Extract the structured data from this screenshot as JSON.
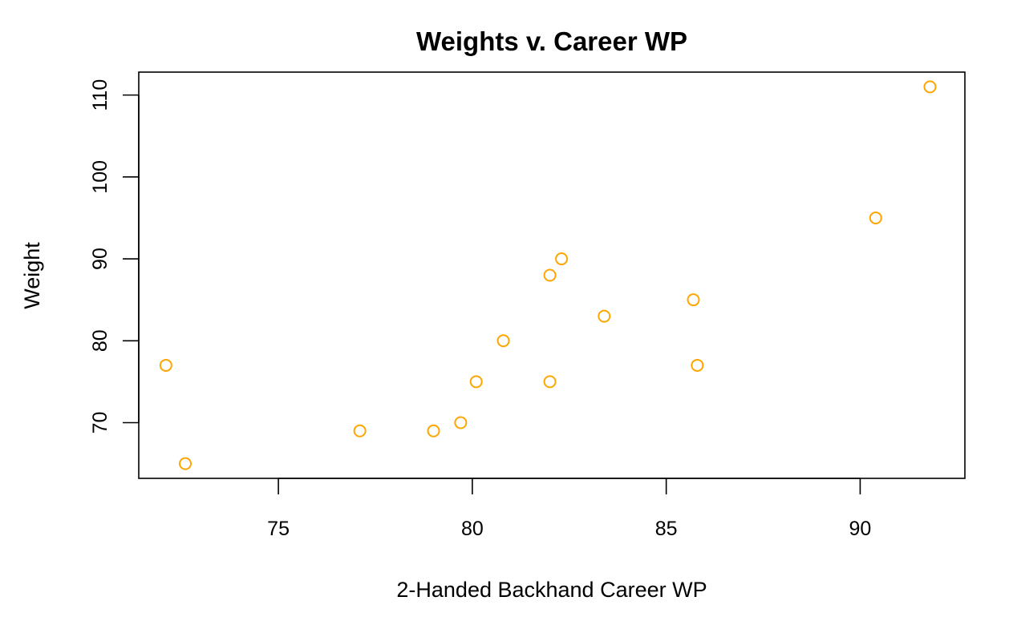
{
  "chart_data": {
    "type": "scatter",
    "title": "Weights v. Career WP",
    "xlabel": "2-Handed Backhand Career WP",
    "ylabel": "Weight",
    "xlim": [
      71.4,
      92.7
    ],
    "ylim": [
      63.2,
      112.8
    ],
    "xticks": [
      75,
      80,
      85,
      90
    ],
    "yticks": [
      70,
      80,
      90,
      100,
      110
    ],
    "marker": "open-circle",
    "point_color": "#FFA500",
    "grid": false,
    "points": [
      {
        "x": 72.1,
        "y": 77
      },
      {
        "x": 72.6,
        "y": 65
      },
      {
        "x": 77.1,
        "y": 69
      },
      {
        "x": 79.0,
        "y": 69
      },
      {
        "x": 79.7,
        "y": 70
      },
      {
        "x": 80.1,
        "y": 75
      },
      {
        "x": 80.8,
        "y": 80
      },
      {
        "x": 82.0,
        "y": 88
      },
      {
        "x": 82.0,
        "y": 75
      },
      {
        "x": 82.3,
        "y": 90
      },
      {
        "x": 83.4,
        "y": 83
      },
      {
        "x": 85.7,
        "y": 85
      },
      {
        "x": 85.8,
        "y": 77
      },
      {
        "x": 90.4,
        "y": 95
      },
      {
        "x": 91.8,
        "y": 111
      }
    ]
  }
}
